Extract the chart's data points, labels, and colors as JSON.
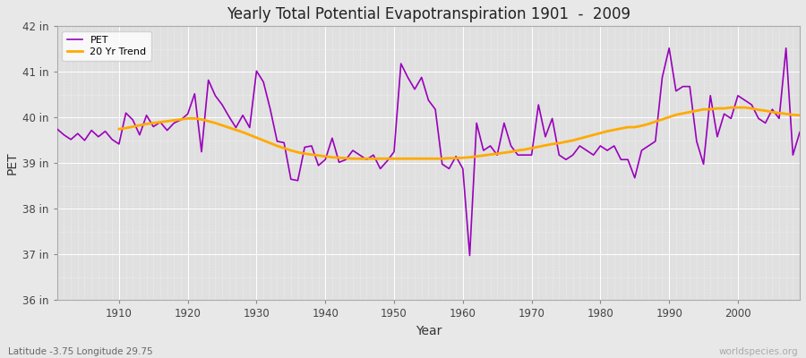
{
  "title": "Yearly Total Potential Evapotranspiration 1901  -  2009",
  "xlabel": "Year",
  "ylabel": "PET",
  "subtitle_left": "Latitude -3.75 Longitude 29.75",
  "subtitle_right": "worldspecies.org",
  "ylim": [
    36,
    42
  ],
  "xlim": [
    1901,
    2009
  ],
  "yticks": [
    36,
    37,
    38,
    39,
    40,
    41,
    42
  ],
  "ytick_labels": [
    "36 in",
    "37 in",
    "38 in",
    "39 in",
    "40 in",
    "41 in",
    "42 in"
  ],
  "xticks": [
    1910,
    1920,
    1930,
    1940,
    1950,
    1960,
    1970,
    1980,
    1990,
    2000
  ],
  "fig_bg_color": "#e8e8e8",
  "plot_bg_color": "#e0e0e0",
  "grid_color": "#ffffff",
  "pet_color": "#9900bb",
  "trend_color": "#ffaa00",
  "pet_linewidth": 1.2,
  "trend_linewidth": 2.0,
  "years": [
    1901,
    1902,
    1903,
    1904,
    1905,
    1906,
    1907,
    1908,
    1909,
    1910,
    1911,
    1912,
    1913,
    1914,
    1915,
    1916,
    1917,
    1918,
    1919,
    1920,
    1921,
    1922,
    1923,
    1924,
    1925,
    1926,
    1927,
    1928,
    1929,
    1930,
    1931,
    1932,
    1933,
    1934,
    1935,
    1936,
    1937,
    1938,
    1939,
    1940,
    1941,
    1942,
    1943,
    1944,
    1945,
    1946,
    1947,
    1948,
    1949,
    1950,
    1951,
    1952,
    1953,
    1954,
    1955,
    1956,
    1957,
    1958,
    1959,
    1960,
    1961,
    1962,
    1963,
    1964,
    1965,
    1966,
    1967,
    1968,
    1969,
    1970,
    1971,
    1972,
    1973,
    1974,
    1975,
    1976,
    1977,
    1978,
    1979,
    1980,
    1981,
    1982,
    1983,
    1984,
    1985,
    1986,
    1987,
    1988,
    1989,
    1990,
    1991,
    1992,
    1993,
    1994,
    1995,
    1996,
    1997,
    1998,
    1999,
    2000,
    2001,
    2002,
    2003,
    2004,
    2005,
    2006,
    2007,
    2008,
    2009
  ],
  "pet_values": [
    39.75,
    39.62,
    39.52,
    39.65,
    39.5,
    39.72,
    39.58,
    39.7,
    39.52,
    39.42,
    40.1,
    39.95,
    39.62,
    40.05,
    39.8,
    39.9,
    39.72,
    39.88,
    39.95,
    40.08,
    40.52,
    39.25,
    40.82,
    40.48,
    40.28,
    40.02,
    39.78,
    40.05,
    39.78,
    41.02,
    40.78,
    40.18,
    39.48,
    39.45,
    38.65,
    38.62,
    39.35,
    39.38,
    38.95,
    39.08,
    39.55,
    39.02,
    39.08,
    39.28,
    39.18,
    39.08,
    39.18,
    38.88,
    39.05,
    39.25,
    41.18,
    40.88,
    40.62,
    40.88,
    40.38,
    40.18,
    38.98,
    38.88,
    39.15,
    38.88,
    36.98,
    39.88,
    39.28,
    39.38,
    39.18,
    39.88,
    39.38,
    39.18,
    39.18,
    39.18,
    40.28,
    39.58,
    39.98,
    39.18,
    39.08,
    39.18,
    39.38,
    39.28,
    39.18,
    39.38,
    39.28,
    39.38,
    39.08,
    39.08,
    38.68,
    39.28,
    39.38,
    39.48,
    40.88,
    41.52,
    40.58,
    40.68,
    40.68,
    39.48,
    38.98,
    40.48,
    39.58,
    40.08,
    39.98,
    40.48,
    40.38,
    40.28,
    39.98,
    39.88,
    40.18,
    39.98,
    41.52,
    39.18,
    39.68
  ],
  "trend_values": [
    null,
    null,
    null,
    null,
    null,
    null,
    null,
    null,
    null,
    39.75,
    39.77,
    39.8,
    39.83,
    39.86,
    39.88,
    39.9,
    39.92,
    39.94,
    39.96,
    39.98,
    39.98,
    39.96,
    39.92,
    39.88,
    39.83,
    39.78,
    39.73,
    39.68,
    39.62,
    39.56,
    39.5,
    39.44,
    39.38,
    39.33,
    39.28,
    39.24,
    39.21,
    39.19,
    39.17,
    39.15,
    39.13,
    39.12,
    39.11,
    39.1,
    39.1,
    39.1,
    39.1,
    39.1,
    39.1,
    39.1,
    39.1,
    39.1,
    39.1,
    39.1,
    39.1,
    39.1,
    39.1,
    39.11,
    39.11,
    39.12,
    39.13,
    39.15,
    39.17,
    39.19,
    39.21,
    39.23,
    39.25,
    39.28,
    39.3,
    39.33,
    39.36,
    39.39,
    39.42,
    39.44,
    39.47,
    39.5,
    39.54,
    39.58,
    39.62,
    39.66,
    39.7,
    39.73,
    39.76,
    39.79,
    39.79,
    39.82,
    39.86,
    39.91,
    39.96,
    40.01,
    40.06,
    40.09,
    40.12,
    40.15,
    40.18,
    40.18,
    40.2,
    40.2,
    40.22,
    40.22,
    40.22,
    40.2,
    40.17,
    40.15,
    40.12,
    40.1,
    40.08,
    40.06,
    40.05
  ]
}
